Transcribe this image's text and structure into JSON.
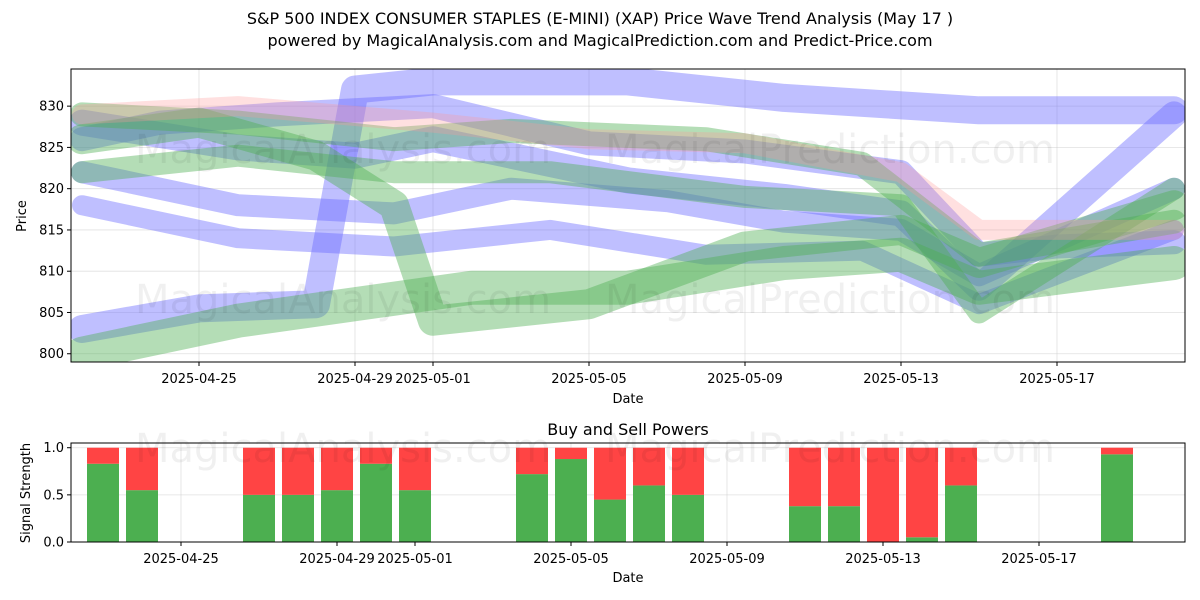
{
  "header": {
    "title": "S&P 500 INDEX CONSUMER STAPLES (E-MINI) (XAP) Price Wave Trend Analysis (May 17 )",
    "subtitle": "powered by MagicalAnalysis.com and MagicalPrediction.com and Predict-Price.com"
  },
  "watermarks": {
    "top_left": "MagicalAnalysis.com",
    "top_right": "MagicalPrediction.com",
    "bottom_left": "MagicalAnalysis.com",
    "bottom_right": "MagicalPrediction.com"
  },
  "colors": {
    "blue_band": "#6666ff",
    "green_band": "#4caf50",
    "red_band": "#ff9999",
    "buy": "#4caf50",
    "sell": "#ff4444"
  },
  "chart_data": [
    {
      "type": "area",
      "title": "",
      "xlabel": "Date",
      "ylabel": "Price",
      "x_ticks": [
        "2025-04-25",
        "2025-04-29",
        "2025-05-01",
        "2025-05-05",
        "2025-05-09",
        "2025-05-13",
        "2025-05-17"
      ],
      "y_ticks": [
        800,
        805,
        810,
        815,
        820,
        825,
        830
      ],
      "xlim": [
        "2025-04-21",
        "2025-05-21"
      ],
      "ylim": [
        799,
        834.5
      ],
      "grid": true,
      "series": [
        {
          "color": "blue",
          "x": [
            "2025-04-22",
            "2025-04-25",
            "2025-04-28",
            "2025-04-29",
            "2025-05-01",
            "2025-05-03",
            "2025-05-06",
            "2025-05-10",
            "2025-05-15",
            "2025-05-20"
          ],
          "values": [
            803,
            805.5,
            806,
            832,
            833,
            833,
            833,
            831,
            829.5,
            829.5
          ]
        },
        {
          "color": "blue",
          "x": [
            "2025-04-22",
            "2025-04-24",
            "2025-04-27",
            "2025-05-01",
            "2025-05-05",
            "2025-05-09",
            "2025-05-13",
            "2025-05-15",
            "2025-05-17",
            "2025-05-20"
          ],
          "values": [
            826,
            828,
            829,
            830,
            825.5,
            824.5,
            822,
            812,
            813,
            813.5
          ]
        },
        {
          "color": "blue",
          "x": [
            "2025-04-22",
            "2025-04-26",
            "2025-04-30",
            "2025-05-03",
            "2025-05-07",
            "2025-05-10",
            "2025-05-13",
            "2025-05-15",
            "2025-05-20"
          ],
          "values": [
            822,
            818,
            817,
            820,
            818.5,
            816,
            815,
            809.5,
            820
          ]
        },
        {
          "color": "blue",
          "x": [
            "2025-04-22",
            "2025-04-26",
            "2025-04-29",
            "2025-05-01",
            "2025-05-06",
            "2025-05-10",
            "2025-05-13",
            "2025-05-15",
            "2025-05-20"
          ],
          "values": [
            828,
            825,
            824,
            826,
            821,
            819,
            817,
            808,
            829
          ]
        },
        {
          "color": "blue",
          "x": [
            "2025-04-22",
            "2025-04-26",
            "2025-04-30",
            "2025-05-04",
            "2025-05-08",
            "2025-05-12",
            "2025-05-15",
            "2025-05-20"
          ],
          "values": [
            818,
            814,
            813,
            815,
            812,
            812.5,
            806,
            815
          ]
        },
        {
          "color": "green",
          "x": [
            "2025-04-22",
            "2025-04-25",
            "2025-04-28",
            "2025-04-30",
            "2025-05-01",
            "2025-05-05",
            "2025-05-09",
            "2025-05-13",
            "2025-05-15",
            "2025-05-20"
          ],
          "values": [
            826,
            828,
            824,
            818,
            804,
            806,
            813,
            815,
            811,
            818
          ]
        },
        {
          "color": "green",
          "x": [
            "2025-04-22",
            "2025-04-26",
            "2025-04-30",
            "2025-05-03",
            "2025-05-08",
            "2025-05-12",
            "2025-05-15",
            "2025-05-20"
          ],
          "values": [
            829,
            828,
            826,
            827,
            826,
            823,
            812,
            816
          ]
        },
        {
          "color": "green",
          "x": [
            "2025-04-22",
            "2025-04-26",
            "2025-04-29",
            "2025-05-02",
            "2025-05-06",
            "2025-05-10",
            "2025-05-13",
            "2025-05-15",
            "2025-05-20"
          ],
          "values": [
            800,
            804,
            806,
            808,
            808,
            811,
            812,
            808,
            811
          ]
        },
        {
          "color": "green",
          "x": [
            "2025-04-22",
            "2025-04-26",
            "2025-04-30",
            "2025-05-04",
            "2025-05-09",
            "2025-05-13",
            "2025-05-15",
            "2025-05-20"
          ],
          "values": [
            822,
            824,
            822,
            822,
            819,
            818,
            805,
            820
          ]
        },
        {
          "color": "red",
          "x": [
            "2025-04-22",
            "2025-04-26",
            "2025-05-01",
            "2025-05-05",
            "2025-05-09",
            "2025-05-13",
            "2025-05-15",
            "2025-05-20"
          ],
          "values": [
            829,
            830,
            828,
            826,
            825.5,
            822,
            815,
            815
          ]
        }
      ]
    },
    {
      "type": "bar",
      "title": "Buy and Sell Powers",
      "xlabel": "Date",
      "ylabel": "Signal Strength",
      "x_ticks": [
        "2025-04-25",
        "2025-04-29",
        "2025-05-01",
        "2025-05-05",
        "2025-05-09",
        "2025-05-13",
        "2025-05-17"
      ],
      "y_ticks": [
        0.0,
        0.5,
        1.0
      ],
      "xlim": [
        "2025-04-21",
        "2025-05-21"
      ],
      "ylim": [
        0,
        1.05
      ],
      "categories": [
        "2025-04-23",
        "2025-04-24",
        "2025-04-27",
        "2025-04-28",
        "2025-04-29",
        "2025-04-30",
        "2025-05-01",
        "2025-05-04",
        "2025-05-05",
        "2025-05-06",
        "2025-05-07",
        "2025-05-08",
        "2025-05-11",
        "2025-05-12",
        "2025-05-13",
        "2025-05-14",
        "2025-05-15",
        "2025-05-19"
      ],
      "series": [
        {
          "name": "buy",
          "values": [
            0.83,
            0.55,
            0.5,
            0.5,
            0.55,
            0.83,
            0.55,
            0.72,
            0.88,
            0.45,
            0.6,
            0.5,
            0.38,
            0.38,
            0.0,
            0.05,
            0.6,
            0.93
          ]
        },
        {
          "name": "sell",
          "values": [
            0.17,
            0.45,
            0.5,
            0.5,
            0.45,
            0.17,
            0.45,
            0.28,
            0.12,
            0.55,
            0.4,
            0.5,
            0.62,
            0.62,
            1.0,
            0.95,
            0.4,
            0.07
          ]
        }
      ]
    }
  ]
}
